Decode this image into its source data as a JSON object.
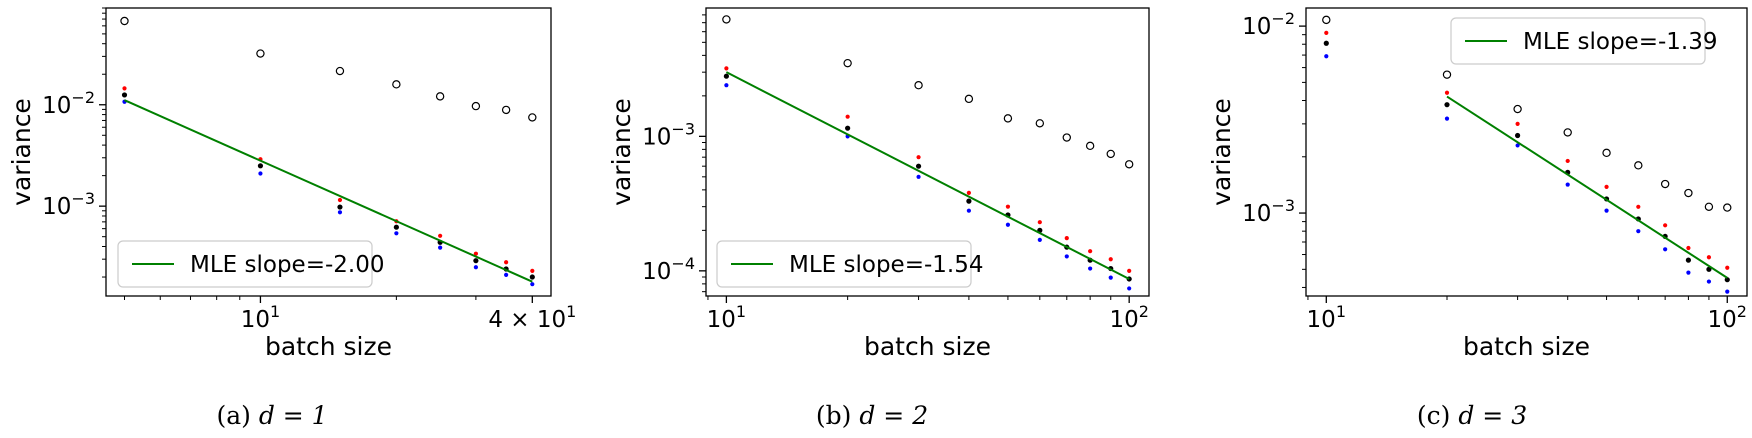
{
  "chart_data": [
    {
      "type": "scatter",
      "caption": {
        "label": "(a)",
        "math": "d = 1"
      },
      "xlabel": "batch size",
      "ylabel": "variance",
      "xscale": "log",
      "yscale": "log",
      "xlim": [
        4.55,
        44
      ],
      "ylim": [
        0.00013,
        0.09
      ],
      "xticks": [
        {
          "value": 10,
          "label": "10",
          "sup": "1"
        },
        {
          "value": 40,
          "label": "4 × 10",
          "sup": "1"
        }
      ],
      "yticks": [
        {
          "value": 0.01,
          "label": "10",
          "sup": "−2"
        },
        {
          "value": 0.001,
          "label": "10",
          "sup": "−3"
        }
      ],
      "grid": false,
      "legend": {
        "position": "lower-left",
        "entries": [
          {
            "label": "MLE slope=-2.00",
            "color": "#008000"
          }
        ]
      },
      "series": [
        {
          "style": "open-circle",
          "color": "#000000",
          "points": [
            [
              5,
              0.067
            ],
            [
              10,
              0.032
            ],
            [
              15,
              0.0215
            ],
            [
              20,
              0.0159
            ],
            [
              25,
              0.0121
            ],
            [
              30,
              0.0097
            ],
            [
              35,
              0.0089
            ],
            [
              40,
              0.0075
            ]
          ]
        },
        {
          "style": "dot",
          "color": "#000000",
          "points": [
            [
              5,
              0.0125
            ],
            [
              10,
              0.0025
            ],
            [
              15,
              0.00098
            ],
            [
              20,
              0.00062
            ],
            [
              25,
              0.00044
            ],
            [
              30,
              0.00029
            ],
            [
              35,
              0.00024
            ],
            [
              40,
              0.0002
            ]
          ]
        },
        {
          "style": "dot",
          "color": "#ff0000",
          "points": [
            [
              5,
              0.0145
            ],
            [
              10,
              0.0029
            ],
            [
              15,
              0.00115
            ],
            [
              20,
              0.00071
            ],
            [
              25,
              0.00051
            ],
            [
              30,
              0.00034
            ],
            [
              35,
              0.00028
            ],
            [
              40,
              0.00023
            ]
          ]
        },
        {
          "style": "dot",
          "color": "#0000ff",
          "points": [
            [
              5,
              0.0107
            ],
            [
              10,
              0.0021
            ],
            [
              15,
              0.00087
            ],
            [
              20,
              0.00054
            ],
            [
              25,
              0.00039
            ],
            [
              30,
              0.00025
            ],
            [
              35,
              0.00021
            ],
            [
              40,
              0.00017
            ]
          ]
        },
        {
          "style": "line",
          "color": "#008000",
          "points": [
            [
              5,
              0.0111
            ],
            [
              40,
              0.00018
            ]
          ]
        }
      ]
    },
    {
      "type": "scatter",
      "caption": {
        "label": "(b)",
        "math": "d = 2"
      },
      "xlabel": "batch size",
      "ylabel": "variance",
      "xscale": "log",
      "yscale": "log",
      "xlim": [
        8.9,
        112
      ],
      "ylim": [
        6.5e-05,
        0.009
      ],
      "xticks": [
        {
          "value": 10,
          "label": "10",
          "sup": "1"
        },
        {
          "value": 100,
          "label": "10",
          "sup": "2"
        }
      ],
      "yticks": [
        {
          "value": 0.001,
          "label": "10",
          "sup": "−3"
        },
        {
          "value": 0.0001,
          "label": "10",
          "sup": "−4"
        }
      ],
      "grid": false,
      "legend": {
        "position": "lower-left",
        "entries": [
          {
            "label": "MLE slope=-1.54",
            "color": "#008000"
          }
        ]
      },
      "series": [
        {
          "style": "open-circle",
          "color": "#000000",
          "points": [
            [
              10,
              0.0074
            ],
            [
              20,
              0.0035
            ],
            [
              30,
              0.0024
            ],
            [
              40,
              0.0019
            ],
            [
              50,
              0.00136
            ],
            [
              60,
              0.00125
            ],
            [
              70,
              0.00098
            ],
            [
              80,
              0.00085
            ],
            [
              90,
              0.00074
            ],
            [
              100,
              0.00062
            ]
          ]
        },
        {
          "style": "dot",
          "color": "#000000",
          "points": [
            [
              10,
              0.0028
            ],
            [
              20,
              0.00115
            ],
            [
              30,
              0.0006
            ],
            [
              40,
              0.00033
            ],
            [
              50,
              0.00026
            ],
            [
              60,
              0.0002
            ],
            [
              70,
              0.00015
            ],
            [
              80,
              0.00012
            ],
            [
              90,
              0.000104
            ],
            [
              100,
              8.7e-05
            ]
          ]
        },
        {
          "style": "dot",
          "color": "#ff0000",
          "points": [
            [
              10,
              0.0032
            ],
            [
              20,
              0.0014
            ],
            [
              30,
              0.0007
            ],
            [
              40,
              0.00038
            ],
            [
              50,
              0.0003
            ],
            [
              60,
              0.00023
            ],
            [
              70,
              0.000175
            ],
            [
              80,
              0.00014
            ],
            [
              90,
              0.000122
            ],
            [
              100,
              0.0001
            ]
          ]
        },
        {
          "style": "dot",
          "color": "#0000ff",
          "points": [
            [
              10,
              0.0024
            ],
            [
              20,
              0.001
            ],
            [
              30,
              0.0005
            ],
            [
              40,
              0.00028
            ],
            [
              50,
              0.00022
            ],
            [
              60,
              0.00017
            ],
            [
              70,
              0.000128
            ],
            [
              80,
              0.000104
            ],
            [
              90,
              8.9e-05
            ],
            [
              100,
              7.4e-05
            ]
          ]
        },
        {
          "style": "line",
          "color": "#008000",
          "points": [
            [
              10,
              0.003
            ],
            [
              100,
              8.7e-05
            ]
          ]
        }
      ]
    },
    {
      "type": "scatter",
      "caption": {
        "label": "(c)",
        "math": "d = 3"
      },
      "xlabel": "batch size",
      "ylabel": "variance",
      "xscale": "log",
      "yscale": "log",
      "xlim": [
        8.9,
        112
      ],
      "ylim": [
        0.00036,
        0.0125
      ],
      "xticks": [
        {
          "value": 10,
          "label": "10",
          "sup": "1"
        },
        {
          "value": 100,
          "label": "10",
          "sup": "2"
        }
      ],
      "yticks": [
        {
          "value": 0.01,
          "label": "10",
          "sup": "−2"
        },
        {
          "value": 0.001,
          "label": "10",
          "sup": "−3"
        }
      ],
      "grid": false,
      "legend": {
        "position": "top-right",
        "entries": [
          {
            "label": "MLE slope=-1.39",
            "color": "#008000"
          }
        ]
      },
      "series": [
        {
          "style": "open-circle",
          "color": "#000000",
          "points": [
            [
              10,
              0.0108
            ],
            [
              20,
              0.0055
            ],
            [
              30,
              0.0036
            ],
            [
              40,
              0.0027
            ],
            [
              50,
              0.0021
            ],
            [
              60,
              0.0018
            ],
            [
              70,
              0.00143
            ],
            [
              80,
              0.00128
            ],
            [
              90,
              0.00108
            ],
            [
              100,
              0.00107
            ]
          ]
        },
        {
          "style": "dot",
          "color": "#000000",
          "points": [
            [
              10,
              0.0081
            ],
            [
              20,
              0.0038
            ],
            [
              30,
              0.0026
            ],
            [
              40,
              0.00165
            ],
            [
              50,
              0.00119
            ],
            [
              60,
              0.00093
            ],
            [
              70,
              0.00075
            ],
            [
              80,
              0.00056
            ],
            [
              90,
              0.0005
            ],
            [
              100,
              0.00044
            ]
          ]
        },
        {
          "style": "dot",
          "color": "#ff0000",
          "points": [
            [
              10,
              0.0092
            ],
            [
              20,
              0.0044
            ],
            [
              30,
              0.003
            ],
            [
              40,
              0.0019
            ],
            [
              50,
              0.00138
            ],
            [
              60,
              0.00108
            ],
            [
              70,
              0.00086
            ],
            [
              80,
              0.00065
            ],
            [
              90,
              0.00058
            ],
            [
              100,
              0.00051
            ]
          ]
        },
        {
          "style": "dot",
          "color": "#0000ff",
          "points": [
            [
              10,
              0.0069
            ],
            [
              20,
              0.0032
            ],
            [
              30,
              0.0023
            ],
            [
              40,
              0.00142
            ],
            [
              50,
              0.00103
            ],
            [
              60,
              0.0008
            ],
            [
              70,
              0.00064
            ],
            [
              80,
              0.00048
            ],
            [
              90,
              0.00043
            ],
            [
              100,
              0.00038
            ]
          ]
        },
        {
          "style": "line",
          "color": "#008000",
          "points": [
            [
              20,
              0.0042
            ],
            [
              100,
              0.00045
            ]
          ]
        }
      ]
    }
  ]
}
